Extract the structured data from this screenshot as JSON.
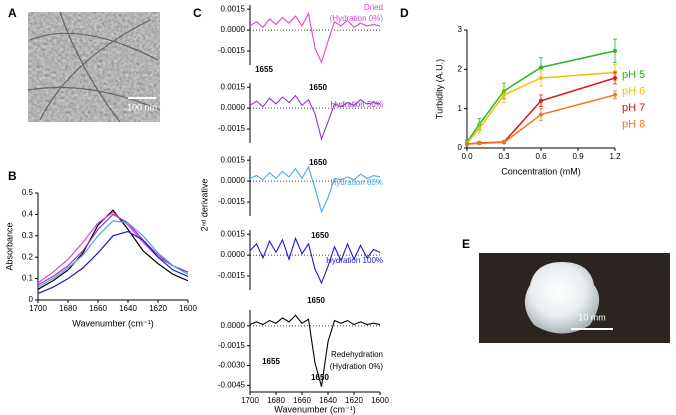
{
  "images": [
    {
      "panel": "A",
      "scale_label": "100 nm"
    },
    {
      "panel": "E",
      "scale_label": "10 mm"
    }
  ],
  "chart_data": [
    {
      "panel": "B",
      "type": "line",
      "xlabel": "Wavenumber (cm⁻¹)",
      "ylabel": "Absorbance",
      "x": [
        1700,
        1690,
        1680,
        1670,
        1660,
        1650,
        1640,
        1630,
        1620,
        1610,
        1600
      ],
      "xlim": [
        1700,
        1600
      ],
      "xticks": [
        1700,
        1680,
        1660,
        1640,
        1620,
        1600
      ],
      "ylim": [
        0,
        0.5
      ],
      "yticks": [
        0,
        0.1,
        0.2,
        0.3,
        0.4,
        0.5
      ],
      "series": [
        {
          "color": "#000000",
          "values": [
            0.05,
            0.09,
            0.14,
            0.22,
            0.35,
            0.42,
            0.33,
            0.23,
            0.17,
            0.12,
            0.09
          ]
        },
        {
          "color": "#e040e0",
          "values": [
            0.08,
            0.13,
            0.19,
            0.27,
            0.36,
            0.41,
            0.35,
            0.27,
            0.2,
            0.16,
            0.13
          ]
        },
        {
          "color": "#9b30c8",
          "values": [
            0.07,
            0.11,
            0.16,
            0.23,
            0.33,
            0.4,
            0.36,
            0.28,
            0.21,
            0.16,
            0.13
          ]
        },
        {
          "color": "#4aa8e0",
          "values": [
            0.06,
            0.1,
            0.15,
            0.21,
            0.3,
            0.37,
            0.36,
            0.3,
            0.22,
            0.16,
            0.12
          ]
        },
        {
          "color": "#1a1ad0",
          "values": [
            0.03,
            0.06,
            0.1,
            0.15,
            0.22,
            0.3,
            0.32,
            0.28,
            0.2,
            0.14,
            0.11
          ]
        }
      ]
    },
    {
      "panel": "C",
      "type": "stacked-line",
      "xlabel": "Wavenumber (cm⁻¹)",
      "ylabel": "2ⁿᵈ derivative",
      "x": [
        1700,
        1695,
        1690,
        1685,
        1680,
        1675,
        1670,
        1665,
        1660,
        1655,
        1650,
        1645,
        1640,
        1635,
        1630,
        1625,
        1620,
        1615,
        1610,
        1605,
        1600
      ],
      "xlim": [
        1700,
        1600
      ],
      "xticks": [
        1700,
        1680,
        1660,
        1640,
        1620,
        1600
      ],
      "series": [
        {
          "color": "#e040e0",
          "label": [
            "Dried",
            "(Hydration 0%)"
          ],
          "annotations": [
            "1655",
            "1650"
          ],
          "ylim": [
            -0.0025,
            0.0018
          ],
          "yticks": [
            0.0015,
            {
              "value": 0,
              "label": "0.0000"
            },
            -0.0015
          ],
          "values": [
            0.0003,
            0.0006,
            0.0002,
            0.0008,
            0.0004,
            0.0009,
            0.0005,
            0.001,
            0.0003,
            0.0012,
            -0.0013,
            -0.0023,
            -0.0008,
            0.0006,
            0.0003,
            0.0007,
            0.0002,
            0.0005,
            0.0003,
            0.0004,
            0.0003
          ]
        },
        {
          "color": "#9b30c8",
          "label": [
            "Hydration 50%"
          ],
          "annotations": [
            "1650"
          ],
          "ylim": [
            -0.0025,
            0.0018
          ],
          "yticks": [
            0.0015,
            {
              "value": 0,
              "label": "0.0000"
            },
            -0.0015
          ],
          "values": [
            0.0002,
            0.0005,
            0.0001,
            0.0007,
            0.0003,
            0.0008,
            0.0004,
            0.0009,
            0.0002,
            0.0006,
            -0.0004,
            -0.0022,
            -0.001,
            0.0003,
            0.0001,
            0.0004,
            0.0002,
            0.0006,
            0.0003,
            0.0004,
            0.0003
          ]
        },
        {
          "color": "#4aa8e0",
          "label": [
            "Hydration 80%"
          ],
          "annotations": [
            "1650"
          ],
          "ylim": [
            -0.0025,
            0.0018
          ],
          "yticks": [
            0.0015,
            {
              "value": 0,
              "label": "0.0000"
            },
            -0.0015
          ],
          "values": [
            0.0002,
            0.0004,
            0.0001,
            0.0006,
            0.0002,
            0.0007,
            0.0003,
            0.0009,
            0.0002,
            0.001,
            -0.0005,
            -0.0022,
            -0.0012,
            0.0002,
            0.0001,
            0.0003,
            0.0001,
            0.0005,
            0.0002,
            0.0004,
            0.0003
          ]
        },
        {
          "color": "#1a1ad0",
          "label": [
            "Hydration 100%"
          ],
          "annotations": [
            "1650"
          ],
          "ylim": [
            -0.0025,
            0.0018
          ],
          "yticks": [
            0.0015,
            {
              "value": 0,
              "label": "0.0000"
            },
            -0.0015
          ],
          "values": [
            0.0003,
            0.0008,
            -0.0002,
            0.001,
            0.0002,
            0.0011,
            -0.0003,
            0.0012,
            0.0001,
            0.0008,
            -0.001,
            -0.002,
            -0.0008,
            0.0006,
            -0.0004,
            0.0008,
            -0.0003,
            0.0007,
            -0.0002,
            0.0004,
            0.0002
          ]
        },
        {
          "color": "#000000",
          "label": [
            "Redehydration",
            "(Hydration 0%)"
          ],
          "annotations": [
            "1655",
            "1650"
          ],
          "ylim": [
            -0.005,
            0.0012
          ],
          "yticks": [
            {
              "value": 0,
              "label": "0.0000"
            },
            -0.0015,
            {
              "value": -0.003,
              "label": "-0.0030"
            },
            -0.0045
          ],
          "values": [
            0.0001,
            0.0003,
            0.0001,
            0.0004,
            0.0002,
            0.0006,
            0.0003,
            0.0008,
            0.0002,
            0.0005,
            -0.0028,
            -0.0046,
            -0.0012,
            0.0004,
            0.0002,
            0.0004,
            0.0001,
            0.0003,
            0.0001,
            0.0002,
            0.0001
          ]
        }
      ]
    },
    {
      "panel": "D",
      "type": "errorbar-line",
      "xlabel": "Concentration (mM)",
      "ylabel": "Turbidity (A.U.)",
      "x": [
        0,
        0.1,
        0.3,
        0.6,
        1.2
      ],
      "xlim": [
        0,
        1.2
      ],
      "xticks": [
        {
          "value": 0,
          "label": "0.0"
        },
        0.3,
        0.6,
        0.9,
        1.2
      ],
      "ylim": [
        0,
        3
      ],
      "yticks": [
        0,
        1,
        2,
        3
      ],
      "series": [
        {
          "name": "pH 5",
          "color": "#22b822",
          "values": [
            0.15,
            0.6,
            1.45,
            2.05,
            2.47
          ],
          "errors": [
            0.05,
            0.15,
            0.2,
            0.25,
            0.3
          ]
        },
        {
          "name": "pH 6",
          "color": "#f5c000",
          "values": [
            0.12,
            0.5,
            1.35,
            1.78,
            1.92
          ],
          "errors": [
            0.05,
            0.12,
            0.2,
            0.2,
            0.2
          ]
        },
        {
          "name": "pH 7",
          "color": "#e81010",
          "values": [
            0.1,
            0.13,
            0.15,
            1.2,
            1.78
          ],
          "errors": [
            0.03,
            0.03,
            0.03,
            0.15,
            0.15
          ]
        },
        {
          "name": "pH 8",
          "color": "#f07818",
          "values": [
            0.1,
            0.12,
            0.14,
            0.85,
            1.35
          ],
          "errors": [
            0.03,
            0.03,
            0.03,
            0.15,
            0.1
          ]
        }
      ]
    }
  ]
}
